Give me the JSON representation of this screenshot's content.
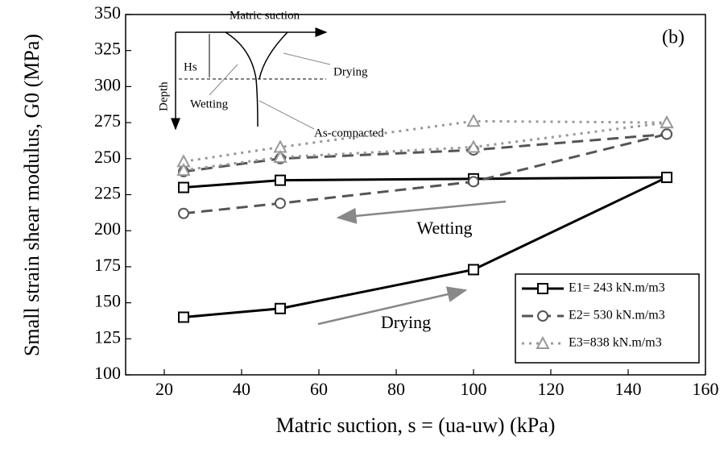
{
  "chart_data": {
    "type": "line",
    "annotation_panel": "(b)",
    "x_label": "Matric suction, s = (ua-uw) (kPa)",
    "y_label": "Small strain shear modulus, G0 (MPa)",
    "xlim": [
      10,
      160
    ],
    "xticks": [
      20,
      40,
      60,
      80,
      100,
      120,
      140,
      160
    ],
    "ylim": [
      100,
      350
    ],
    "yticks": [
      100,
      125,
      150,
      175,
      200,
      225,
      250,
      275,
      300,
      325,
      350
    ],
    "x": [
      25,
      50,
      100,
      150
    ],
    "series": [
      {
        "name": "E1= 243 kN.m/m3",
        "color": "#000000",
        "marker": "square",
        "linestyle": "solid",
        "drying": [
          140,
          146,
          173,
          237
        ],
        "wetting": [
          230,
          235,
          236,
          237
        ]
      },
      {
        "name": "E2= 530 kN.m/m3",
        "color": "#555555",
        "marker": "circle",
        "linestyle": "dashed",
        "drying": [
          212,
          219,
          234,
          267
        ],
        "wetting": [
          241,
          250,
          256,
          267
        ]
      },
      {
        "name": "E3=838 kN.m/m3",
        "color": "#999999",
        "marker": "triangle",
        "linestyle": "dotted",
        "drying": [
          248,
          258,
          276,
          275
        ],
        "wetting": [
          242,
          251,
          258,
          275
        ]
      }
    ],
    "arrow_labels": {
      "wetting": "Wetting",
      "drying": "Drying"
    },
    "inset": {
      "x_axis": "Matric suction",
      "y_axis": "Depth",
      "hs": "Hs",
      "drying": "Drying",
      "wetting": "Wetting",
      "as_compacted": "As-compacted"
    }
  }
}
